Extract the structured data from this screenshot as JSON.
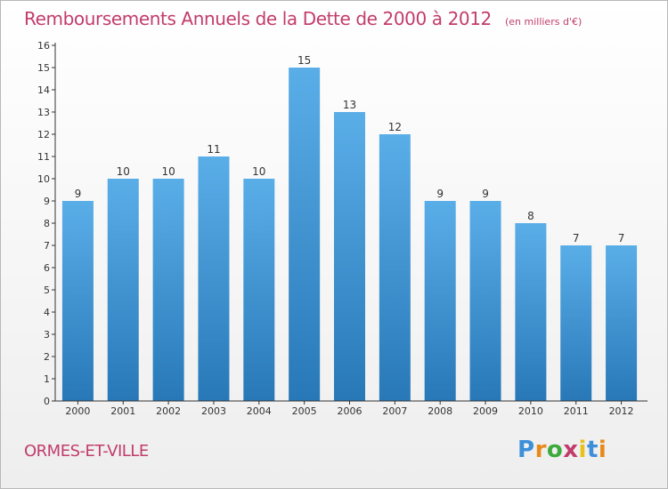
{
  "chart_data": {
    "type": "bar",
    "title": "Remboursements Annuels de la Dette de 2000 à 2012",
    "subtitle": "(en milliers d'€)",
    "categories": [
      "2000",
      "2001",
      "2002",
      "2003",
      "2004",
      "2005",
      "2006",
      "2007",
      "2008",
      "2009",
      "2010",
      "2011",
      "2012"
    ],
    "values": [
      9,
      10,
      10,
      11,
      10,
      15,
      13,
      12,
      9,
      9,
      8,
      7,
      7
    ],
    "ylim": [
      0,
      16
    ],
    "yticks": [
      0,
      1,
      2,
      3,
      4,
      5,
      6,
      7,
      8,
      9,
      10,
      11,
      12,
      13,
      14,
      15,
      16
    ],
    "grid": false,
    "bar_color_top": "#5aaee8",
    "bar_color_bottom": "#2878b8"
  },
  "footer": {
    "commune": "ORMES-ET-VILLE"
  },
  "logo": {
    "text": "Proxiti",
    "letter_colors": [
      "#3c8fd8",
      "#e88a1a",
      "#3caa3c",
      "#c23c6b",
      "#e8c21a",
      "#3c8fd8",
      "#e88a1a"
    ]
  },
  "colors": {
    "title": "#c23c6b",
    "axis": "#333333"
  }
}
